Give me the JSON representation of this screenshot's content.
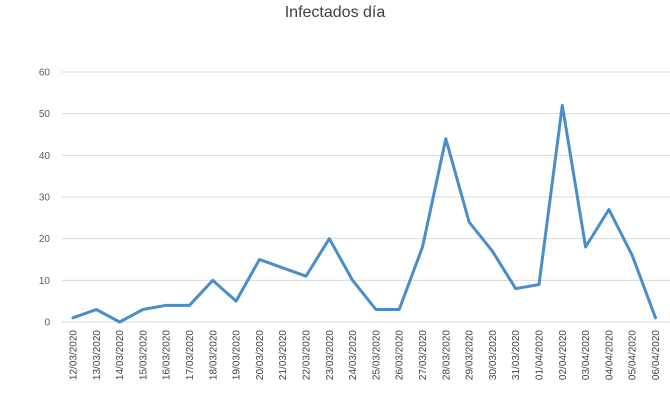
{
  "chart_data": {
    "type": "line",
    "title": "Infectados día",
    "xlabel": "",
    "ylabel": "",
    "ylim": [
      0,
      60
    ],
    "yticks": [
      0,
      10,
      20,
      30,
      40,
      50,
      60
    ],
    "grid": true,
    "categories": [
      "12/03/2020",
      "13/03/2020",
      "14/03/2020",
      "15/03/2020",
      "16/03/2020",
      "17/03/2020",
      "18/03/2020",
      "19/03/2020",
      "20/03/2020",
      "21/03/2020",
      "22/03/2020",
      "23/03/2020",
      "24/03/2020",
      "25/03/2020",
      "26/03/2020",
      "27/03/2020",
      "28/03/2020",
      "29/03/2020",
      "30/03/2020",
      "31/03/2020",
      "01/04/2020",
      "02/04/2020",
      "03/04/2020",
      "04/04/2020",
      "05/04/2020",
      "06/04/2020"
    ],
    "series": [
      {
        "name": "Infectados día",
        "color": "#4a8dc8",
        "values": [
          1,
          3,
          0,
          3,
          4,
          4,
          10,
          5,
          15,
          13,
          11,
          20,
          10,
          3,
          3,
          18,
          44,
          24,
          17,
          8,
          9,
          52,
          18,
          27,
          16,
          1
        ]
      }
    ]
  }
}
